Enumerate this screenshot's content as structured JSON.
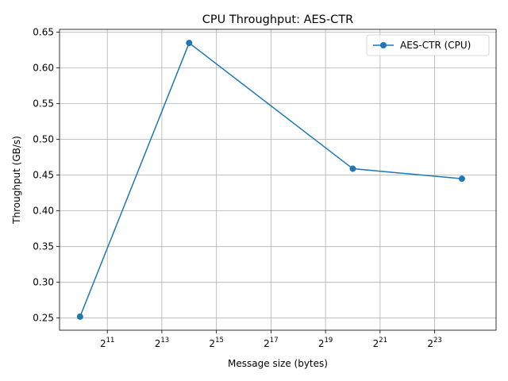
{
  "chart_data": {
    "type": "line",
    "title": "CPU Throughput: AES-CTR",
    "xlabel": "Message size (bytes)",
    "ylabel": "Throughput (GB/s)",
    "x_scale": "log2",
    "xlim": [
      608,
      40000000
    ],
    "ylim": [
      0.233,
      0.654
    ],
    "x_ticks": [
      2048,
      8192,
      32768,
      131072,
      524288,
      2097152,
      8388608
    ],
    "x_tick_labels": [
      {
        "base": "2",
        "exp": "11"
      },
      {
        "base": "2",
        "exp": "13"
      },
      {
        "base": "2",
        "exp": "15"
      },
      {
        "base": "2",
        "exp": "17"
      },
      {
        "base": "2",
        "exp": "19"
      },
      {
        "base": "2",
        "exp": "21"
      },
      {
        "base": "2",
        "exp": "23"
      }
    ],
    "y_ticks": [
      0.25,
      0.3,
      0.35,
      0.4,
      0.45,
      0.5,
      0.55,
      0.6,
      0.65
    ],
    "y_tick_labels": [
      "0.25",
      "0.30",
      "0.35",
      "0.40",
      "0.45",
      "0.50",
      "0.55",
      "0.60",
      "0.65"
    ],
    "grid": true,
    "legend_position": "top-right",
    "series": [
      {
        "name": "AES-CTR (CPU)",
        "color": "#1f77b4",
        "marker": "circle",
        "x": [
          1024,
          16384,
          1048576,
          16777216
        ],
        "y": [
          0.252,
          0.635,
          0.459,
          0.445
        ]
      }
    ]
  }
}
